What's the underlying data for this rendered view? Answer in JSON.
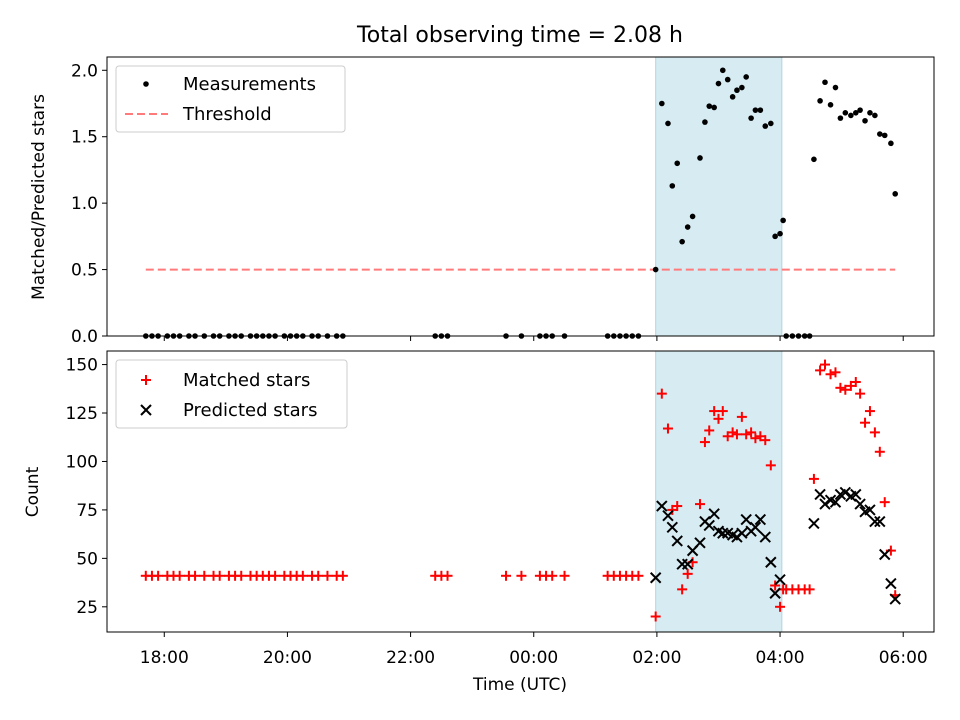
{
  "chart_data": [
    {
      "type": "scatter",
      "title": "Total observing time = 2.08 h",
      "ylabel": "Matched/Predicted stars",
      "xlabel": "",
      "xlim_hours": [
        -6.93,
        6.5
      ],
      "ylim": [
        0,
        2.1
      ],
      "yticks": [
        0.0,
        0.5,
        1.0,
        1.5,
        2.0
      ],
      "ytick_labels": [
        "0.0",
        "0.5",
        "1.0",
        "1.5",
        "2.0"
      ],
      "highlight_span_hours": [
        1.98,
        4.03
      ],
      "highlight_color": "#add8e6",
      "legend_position": "top-left",
      "threshold": {
        "name": "Threshold",
        "value": 0.5,
        "x_range_hours": [
          -6.3,
          5.87
        ],
        "color": "#ff7b7b"
      },
      "series": [
        {
          "name": "Measurements",
          "color": "#000000",
          "marker": "dot",
          "points": [
            [
              -6.3,
              0
            ],
            [
              -6.2,
              0
            ],
            [
              -6.1,
              0
            ],
            [
              -5.95,
              0
            ],
            [
              -5.85,
              0
            ],
            [
              -5.75,
              0
            ],
            [
              -5.6,
              0
            ],
            [
              -5.5,
              0
            ],
            [
              -5.35,
              0
            ],
            [
              -5.2,
              0
            ],
            [
              -5.1,
              0
            ],
            [
              -4.95,
              0
            ],
            [
              -4.85,
              0
            ],
            [
              -4.75,
              0
            ],
            [
              -4.6,
              0
            ],
            [
              -4.5,
              0
            ],
            [
              -4.4,
              0
            ],
            [
              -4.3,
              0
            ],
            [
              -4.2,
              0
            ],
            [
              -4.05,
              0
            ],
            [
              -3.95,
              0
            ],
            [
              -3.85,
              0
            ],
            [
              -3.75,
              0
            ],
            [
              -3.6,
              0
            ],
            [
              -3.5,
              0
            ],
            [
              -3.35,
              0
            ],
            [
              -3.2,
              0
            ],
            [
              -3.1,
              0
            ],
            [
              -1.6,
              0
            ],
            [
              -1.5,
              0
            ],
            [
              -1.4,
              0
            ],
            [
              -0.45,
              0
            ],
            [
              -0.2,
              0
            ],
            [
              0.1,
              0
            ],
            [
              0.2,
              0
            ],
            [
              0.3,
              0
            ],
            [
              0.5,
              0
            ],
            [
              1.2,
              0
            ],
            [
              1.3,
              0
            ],
            [
              1.4,
              0
            ],
            [
              1.5,
              0
            ],
            [
              1.6,
              0
            ],
            [
              1.7,
              0
            ],
            [
              1.98,
              0.5
            ],
            [
              2.08,
              1.75
            ],
            [
              2.18,
              1.6
            ],
            [
              2.25,
              1.13
            ],
            [
              2.33,
              1.3
            ],
            [
              2.41,
              0.71
            ],
            [
              2.5,
              0.82
            ],
            [
              2.58,
              0.9
            ],
            [
              2.7,
              1.34
            ],
            [
              2.78,
              1.61
            ],
            [
              2.85,
              1.73
            ],
            [
              2.93,
              1.72
            ],
            [
              3.0,
              1.9
            ],
            [
              3.07,
              2.0
            ],
            [
              3.15,
              1.93
            ],
            [
              3.23,
              1.8
            ],
            [
              3.3,
              1.85
            ],
            [
              3.38,
              1.87
            ],
            [
              3.45,
              1.95
            ],
            [
              3.53,
              1.64
            ],
            [
              3.6,
              1.7
            ],
            [
              3.68,
              1.7
            ],
            [
              3.76,
              1.58
            ],
            [
              3.85,
              1.6
            ],
            [
              3.92,
              0.75
            ],
            [
              4.0,
              0.77
            ],
            [
              4.05,
              0.87
            ],
            [
              4.1,
              0
            ],
            [
              4.2,
              0
            ],
            [
              4.3,
              0
            ],
            [
              4.4,
              0
            ],
            [
              4.48,
              0
            ],
            [
              4.55,
              1.33
            ],
            [
              4.65,
              1.77
            ],
            [
              4.73,
              1.91
            ],
            [
              4.82,
              1.74
            ],
            [
              4.9,
              1.87
            ],
            [
              4.98,
              1.64
            ],
            [
              5.06,
              1.68
            ],
            [
              5.15,
              1.66
            ],
            [
              5.23,
              1.68
            ],
            [
              5.3,
              1.7
            ],
            [
              5.38,
              1.62
            ],
            [
              5.46,
              1.68
            ],
            [
              5.54,
              1.66
            ],
            [
              5.62,
              1.52
            ],
            [
              5.7,
              1.51
            ],
            [
              5.8,
              1.45
            ],
            [
              5.87,
              1.07
            ]
          ]
        }
      ]
    },
    {
      "type": "scatter",
      "title": "",
      "ylabel": "Count",
      "xlabel": "Time (UTC)",
      "xlim_hours": [
        -6.93,
        6.5
      ],
      "ylim": [
        12,
        157
      ],
      "yticks": [
        25,
        50,
        75,
        100,
        125,
        150
      ],
      "ytick_labels": [
        "25",
        "50",
        "75",
        "100",
        "125",
        "150"
      ],
      "xtick_hours": [
        -6,
        -4,
        -2,
        0,
        2,
        4,
        6
      ],
      "xtick_labels": [
        "18:00",
        "20:00",
        "22:00",
        "00:00",
        "02:00",
        "04:00",
        "06:00"
      ],
      "highlight_span_hours": [
        1.98,
        4.03
      ],
      "highlight_color": "#add8e6",
      "legend_position": "top-left",
      "series": [
        {
          "name": "Matched stars",
          "color": "#ff0000",
          "marker": "plus",
          "points": [
            [
              -6.3,
              41
            ],
            [
              -6.2,
              41
            ],
            [
              -6.1,
              41
            ],
            [
              -5.95,
              41
            ],
            [
              -5.85,
              41
            ],
            [
              -5.75,
              41
            ],
            [
              -5.6,
              41
            ],
            [
              -5.5,
              41
            ],
            [
              -5.35,
              41
            ],
            [
              -5.2,
              41
            ],
            [
              -5.1,
              41
            ],
            [
              -4.95,
              41
            ],
            [
              -4.85,
              41
            ],
            [
              -4.75,
              41
            ],
            [
              -4.6,
              41
            ],
            [
              -4.5,
              41
            ],
            [
              -4.4,
              41
            ],
            [
              -4.3,
              41
            ],
            [
              -4.2,
              41
            ],
            [
              -4.05,
              41
            ],
            [
              -3.95,
              41
            ],
            [
              -3.85,
              41
            ],
            [
              -3.75,
              41
            ],
            [
              -3.6,
              41
            ],
            [
              -3.5,
              41
            ],
            [
              -3.35,
              41
            ],
            [
              -3.2,
              41
            ],
            [
              -3.1,
              41
            ],
            [
              -1.6,
              41
            ],
            [
              -1.5,
              41
            ],
            [
              -1.4,
              41
            ],
            [
              -0.45,
              41
            ],
            [
              -0.2,
              41
            ],
            [
              0.1,
              41
            ],
            [
              0.2,
              41
            ],
            [
              0.3,
              41
            ],
            [
              0.5,
              41
            ],
            [
              1.2,
              41
            ],
            [
              1.3,
              41
            ],
            [
              1.4,
              41
            ],
            [
              1.5,
              41
            ],
            [
              1.6,
              41
            ],
            [
              1.7,
              41
            ],
            [
              1.98,
              20
            ],
            [
              2.08,
              135
            ],
            [
              2.18,
              117
            ],
            [
              2.25,
              75
            ],
            [
              2.33,
              77
            ],
            [
              2.41,
              34
            ],
            [
              2.5,
              42
            ],
            [
              2.58,
              48
            ],
            [
              2.7,
              78
            ],
            [
              2.78,
              110
            ],
            [
              2.85,
              116
            ],
            [
              2.93,
              126
            ],
            [
              3.0,
              122
            ],
            [
              3.07,
              126
            ],
            [
              3.15,
              113
            ],
            [
              3.23,
              115
            ],
            [
              3.3,
              114
            ],
            [
              3.38,
              123
            ],
            [
              3.45,
              114
            ],
            [
              3.53,
              115
            ],
            [
              3.6,
              112
            ],
            [
              3.68,
              113
            ],
            [
              3.76,
              111
            ],
            [
              3.85,
              98
            ],
            [
              3.92,
              36
            ],
            [
              4.0,
              25
            ],
            [
              4.05,
              34
            ],
            [
              4.1,
              34
            ],
            [
              4.2,
              34
            ],
            [
              4.3,
              34
            ],
            [
              4.4,
              34
            ],
            [
              4.48,
              34
            ],
            [
              4.55,
              91
            ],
            [
              4.65,
              147
            ],
            [
              4.73,
              150
            ],
            [
              4.82,
              145
            ],
            [
              4.9,
              146
            ],
            [
              4.98,
              138
            ],
            [
              5.06,
              137
            ],
            [
              5.15,
              139
            ],
            [
              5.23,
              141
            ],
            [
              5.3,
              135
            ],
            [
              5.38,
              120
            ],
            [
              5.46,
              126
            ],
            [
              5.54,
              115
            ],
            [
              5.62,
              105
            ],
            [
              5.7,
              79
            ],
            [
              5.8,
              54
            ],
            [
              5.87,
              31
            ]
          ]
        },
        {
          "name": "Predicted stars",
          "color": "#000000",
          "marker": "x",
          "points": [
            [
              1.98,
              40
            ],
            [
              2.08,
              77
            ],
            [
              2.18,
              72
            ],
            [
              2.25,
              66
            ],
            [
              2.33,
              59
            ],
            [
              2.41,
              47
            ],
            [
              2.5,
              47
            ],
            [
              2.58,
              54
            ],
            [
              2.7,
              58
            ],
            [
              2.78,
              69
            ],
            [
              2.85,
              67
            ],
            [
              2.93,
              73
            ],
            [
              3.0,
              64
            ],
            [
              3.07,
              63
            ],
            [
              3.15,
              63
            ],
            [
              3.23,
              62
            ],
            [
              3.3,
              61
            ],
            [
              3.38,
              63
            ],
            [
              3.45,
              70
            ],
            [
              3.53,
              64
            ],
            [
              3.6,
              66
            ],
            [
              3.68,
              70
            ],
            [
              3.76,
              61
            ],
            [
              3.85,
              48
            ],
            [
              3.92,
              32
            ],
            [
              4.0,
              39
            ],
            [
              4.55,
              68
            ],
            [
              4.65,
              83
            ],
            [
              4.73,
              78
            ],
            [
              4.82,
              80
            ],
            [
              4.9,
              79
            ],
            [
              4.98,
              83
            ],
            [
              5.06,
              84
            ],
            [
              5.15,
              82
            ],
            [
              5.23,
              83
            ],
            [
              5.3,
              78
            ],
            [
              5.38,
              74
            ],
            [
              5.46,
              75
            ],
            [
              5.54,
              69
            ],
            [
              5.62,
              69
            ],
            [
              5.7,
              52
            ],
            [
              5.8,
              37
            ],
            [
              5.87,
              29
            ]
          ]
        }
      ]
    }
  ]
}
